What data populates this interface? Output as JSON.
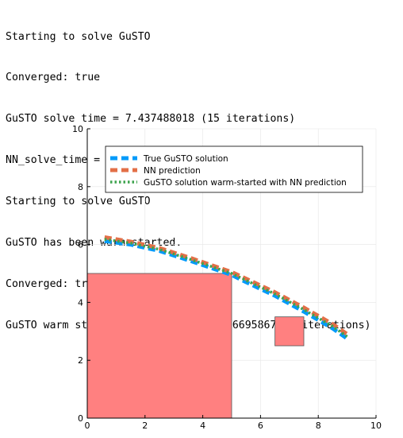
{
  "console": {
    "lines": [
      "Starting to solve GuSTO",
      "Converged: true",
      "GuSTO solve time = 7.437488018 (15 iterations)",
      "NN_solve_time = 0.002333582",
      "Starting to solve GuSTO",
      "GuSTO has been warm-started.",
      "Converged: true",
      "GuSTO warm started solve time = 4.456695867 (9 iterations)"
    ]
  },
  "chart_data": {
    "type": "line",
    "title": "",
    "xlabel": "",
    "ylabel": "",
    "xlim": [
      0,
      10
    ],
    "ylim": [
      0,
      10
    ],
    "xticks": [
      0,
      2,
      4,
      6,
      8,
      10
    ],
    "yticks": [
      0,
      2,
      4,
      6,
      8,
      10
    ],
    "xtick_labels": [
      "0",
      "2",
      "4",
      "6",
      "8",
      "10"
    ],
    "ytick_labels": [
      "0",
      "2",
      "4",
      "6",
      "8",
      "10"
    ],
    "grid": true,
    "legend_position": "top-right",
    "series": [
      {
        "name": "True GuSTO solution",
        "color": "#009AFA",
        "style": "dash",
        "x": [
          0.6,
          1.5,
          2.5,
          3.5,
          4.5,
          5.0,
          5.5,
          6.5,
          7.5,
          8.5,
          9.0
        ],
        "y": [
          6.12,
          6.0,
          5.78,
          5.46,
          5.12,
          4.95,
          4.7,
          4.23,
          3.68,
          3.1,
          2.75
        ]
      },
      {
        "name": "NN prediction",
        "color": "#E36F47",
        "style": "dash",
        "x": [
          0.6,
          1.5,
          2.5,
          3.5,
          4.5,
          5.0,
          5.5,
          6.5,
          7.5,
          8.5,
          9.0
        ],
        "y": [
          6.25,
          6.1,
          5.88,
          5.56,
          5.22,
          5.05,
          4.82,
          4.35,
          3.82,
          3.25,
          2.9
        ]
      },
      {
        "name": "GuSTO solution warm-started with NN prediction",
        "color": "#3EA44E",
        "style": "dot",
        "x": [
          0.6,
          1.5,
          2.5,
          3.5,
          4.5,
          5.0,
          5.5,
          6.5,
          7.5,
          8.5,
          9.0
        ],
        "y": [
          6.18,
          6.05,
          5.83,
          5.51,
          5.17,
          5.0,
          4.76,
          4.29,
          3.75,
          3.17,
          2.82
        ]
      }
    ],
    "obstacles": [
      {
        "x0": 0,
        "y0": 0,
        "x1": 5,
        "y1": 5,
        "color": "#FF8080"
      },
      {
        "x0": 6.5,
        "y0": 2.5,
        "x1": 7.5,
        "y1": 3.5,
        "color": "#FF8080"
      }
    ]
  }
}
